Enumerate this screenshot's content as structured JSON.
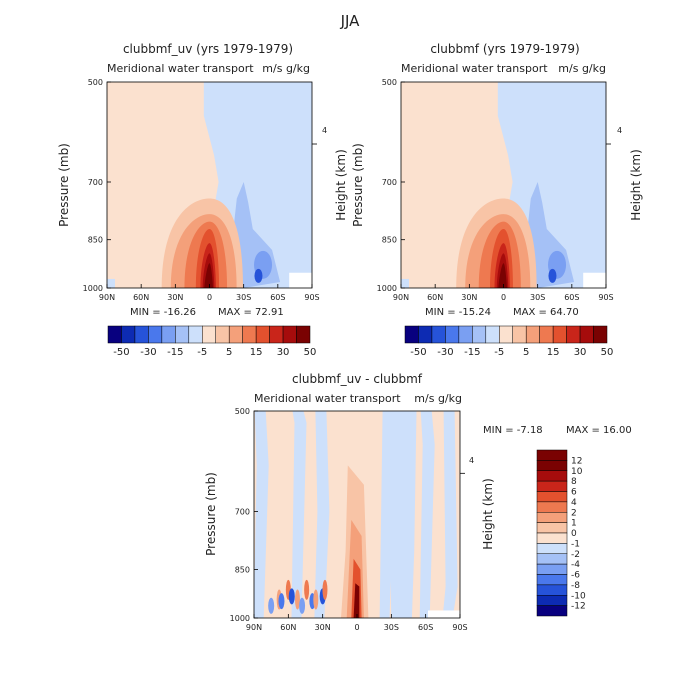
{
  "figure_title": "JJA",
  "chart_data": [
    {
      "type": "heatmap",
      "title": "clubbmf_uv (yrs 1979-1979)",
      "subtitle": "Meridional water transport",
      "units": "m/s g/kg",
      "x_ticks": [
        "90N",
        "60N",
        "30N",
        "0",
        "30S",
        "60S",
        "90S"
      ],
      "y_ticks": [
        "500",
        "700",
        "850",
        "1000"
      ],
      "ylabel": "Pressure (mb)",
      "ylabel_right": "Height (km)",
      "height_tick": "4",
      "x_range": [
        90,
        -90
      ],
      "y_range": [
        1000,
        500
      ],
      "min_label": "MIN = -16.26",
      "max_label": "MAX = 72.91",
      "min": -16.26,
      "max": 72.91,
      "colorbar_labels": [
        "-50",
        "-30",
        "-15",
        "-5",
        "5",
        "15",
        "30",
        "50"
      ],
      "features": [
        {
          "lat": 0,
          "p": 960,
          "value": 72.91
        },
        {
          "lat": -45,
          "p": 950,
          "value": -16.26
        }
      ]
    },
    {
      "type": "heatmap",
      "title": "clubbmf (yrs 1979-1979)",
      "subtitle": "Meridional water transport",
      "units": "m/s g/kg",
      "x_ticks": [
        "90N",
        "60N",
        "30N",
        "0",
        "30S",
        "60S",
        "90S"
      ],
      "y_ticks": [
        "500",
        "700",
        "850",
        "1000"
      ],
      "ylabel": "Pressure (mb)",
      "ylabel_right": "Height (km)",
      "height_tick": "4",
      "x_range": [
        90,
        -90
      ],
      "y_range": [
        1000,
        500
      ],
      "min_label": "MIN = -15.24",
      "max_label": "MAX = 64.70",
      "min": -15.24,
      "max": 64.7,
      "colorbar_labels": [
        "-50",
        "-30",
        "-15",
        "-5",
        "5",
        "15",
        "30",
        "50"
      ],
      "features": [
        {
          "lat": 0,
          "p": 960,
          "value": 64.7
        },
        {
          "lat": -45,
          "p": 950,
          "value": -15.24
        }
      ]
    },
    {
      "type": "heatmap",
      "title": "clubbmf_uv - clubbmf",
      "subtitle": "Meridional water transport",
      "units": "m/s g/kg",
      "x_ticks": [
        "90N",
        "60N",
        "30N",
        "0",
        "30S",
        "60S",
        "90S"
      ],
      "y_ticks": [
        "500",
        "700",
        "850",
        "1000"
      ],
      "ylabel": "Pressure (mb)",
      "ylabel_right": "Height (km)",
      "height_tick": "4",
      "x_range": [
        90,
        -90
      ],
      "y_range": [
        1000,
        500
      ],
      "min_label": "MIN = -7.18",
      "max_label": "MAX = 16.00",
      "min": -7.18,
      "max": 16.0,
      "colorbar_labels": [
        "12",
        "10",
        "8",
        "6",
        "4",
        "2",
        "1",
        "0",
        "-1",
        "-2",
        "-4",
        "-6",
        "-8",
        "-10",
        "-12"
      ]
    }
  ],
  "palettes": {
    "main": [
      "#08007f",
      "#0d2bb3",
      "#2653d9",
      "#4a78ec",
      "#7a9ff2",
      "#a5c1f6",
      "#cde0fb",
      "#fbe1cf",
      "#f8c4a6",
      "#f4a07a",
      "#ee7950",
      "#e3512e",
      "#c9251a",
      "#a60c0c",
      "#7a0202"
    ],
    "diff": [
      "#7a0202",
      "#a60c0c",
      "#c9251a",
      "#e3512e",
      "#ee7950",
      "#f4a07a",
      "#f8c4a6",
      "#fbe1cf",
      "#cde0fb",
      "#a5c1f6",
      "#7a9ff2",
      "#4a78ec",
      "#2653d9",
      "#0d2bb3",
      "#08007f"
    ]
  }
}
